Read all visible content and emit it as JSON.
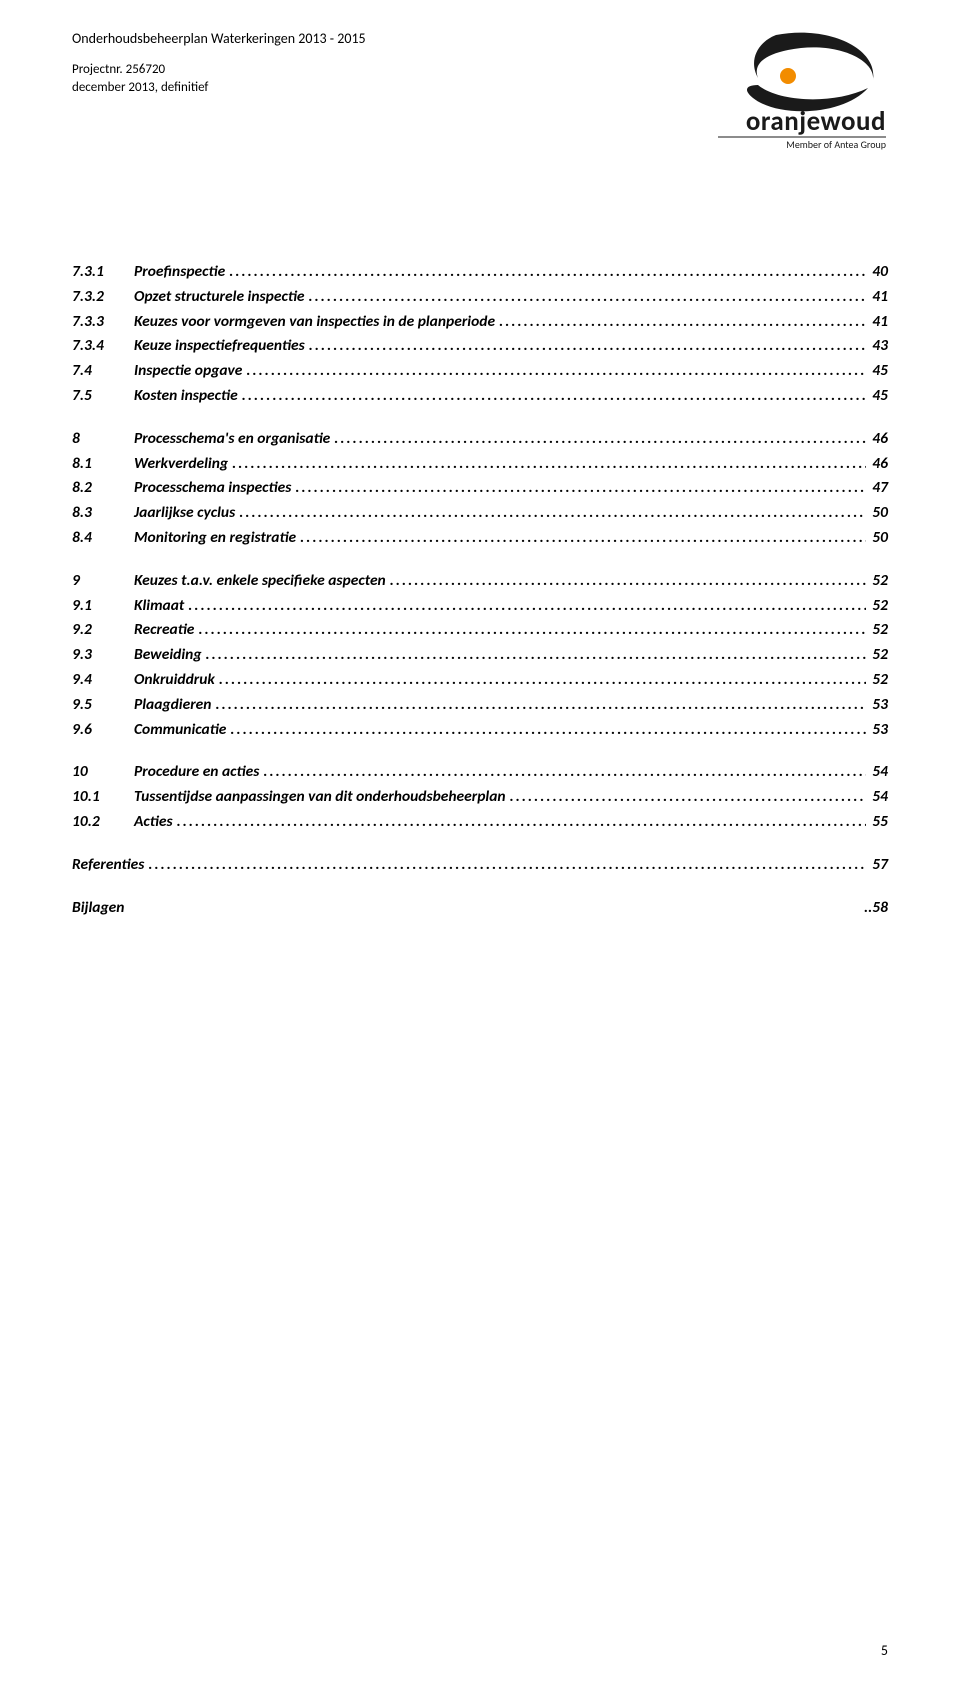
{
  "header": {
    "title": "Onderhoudsbeheerplan Waterkeringen 2013 - 2015",
    "project_line1": "Projectnr. 256720",
    "project_line2": "december 2013,  definitief"
  },
  "logo": {
    "wordmark": "oranjewoud",
    "tagline": "Member of Antea Group",
    "swoosh_color": "#1a1a1a",
    "dot_color": "#f28c00"
  },
  "toc": [
    {
      "group": false,
      "num": "7.3.1",
      "label": "Proefinspectie",
      "page": "40"
    },
    {
      "group": false,
      "num": "7.3.2",
      "label": "Opzet structurele inspectie",
      "page": "41"
    },
    {
      "group": false,
      "num": "7.3.3",
      "label": "Keuzes  voor vormgeven van  inspecties in de planperiode",
      "page": "41"
    },
    {
      "group": false,
      "num": "7.3.4",
      "label": "Keuze inspectiefrequenties",
      "page": "43"
    },
    {
      "group": false,
      "num": "7.4",
      "label": "Inspectie opgave",
      "page": "45"
    },
    {
      "group": false,
      "num": "7.5",
      "label": "Kosten inspectie",
      "page": "45"
    },
    {
      "group": true,
      "num": "8",
      "label": "Processchema's en organisatie",
      "page": "46"
    },
    {
      "group": false,
      "num": "8.1",
      "label": "Werkverdeling",
      "page": "46"
    },
    {
      "group": false,
      "num": "8.2",
      "label": "Processchema inspecties",
      "page": "47"
    },
    {
      "group": false,
      "num": "8.3",
      "label": "Jaarlijkse cyclus",
      "page": "50"
    },
    {
      "group": false,
      "num": "8.4",
      "label": "Monitoring en registratie",
      "page": "50"
    },
    {
      "group": true,
      "num": "9",
      "label": "Keuzes t.a.v. enkele specifieke aspecten",
      "page": "52"
    },
    {
      "group": false,
      "num": "9.1",
      "label": "Klimaat",
      "page": "52"
    },
    {
      "group": false,
      "num": "9.2",
      "label": "Recreatie",
      "page": "52"
    },
    {
      "group": false,
      "num": "9.3",
      "label": "Beweiding",
      "page": "52"
    },
    {
      "group": false,
      "num": "9.4",
      "label": "Onkruiddruk",
      "page": "52"
    },
    {
      "group": false,
      "num": "9.5",
      "label": "Plaagdieren",
      "page": "53"
    },
    {
      "group": false,
      "num": "9.6",
      "label": "Communicatie",
      "page": "53"
    },
    {
      "group": true,
      "num": "10",
      "label": "Procedure en acties",
      "page": "54"
    },
    {
      "group": false,
      "num": "10.1",
      "label": "Tussentijdse aanpassingen van dit onderhoudsbeheerplan",
      "page": "54"
    },
    {
      "group": false,
      "num": "10.2",
      "label": "Acties",
      "page": "55"
    },
    {
      "group": true,
      "unnum": true,
      "num": "",
      "label": "Referenties",
      "page": "57"
    },
    {
      "group": true,
      "split": true,
      "num": "",
      "label": "Bijlagen",
      "page": "..58"
    }
  ],
  "page_number": "5"
}
